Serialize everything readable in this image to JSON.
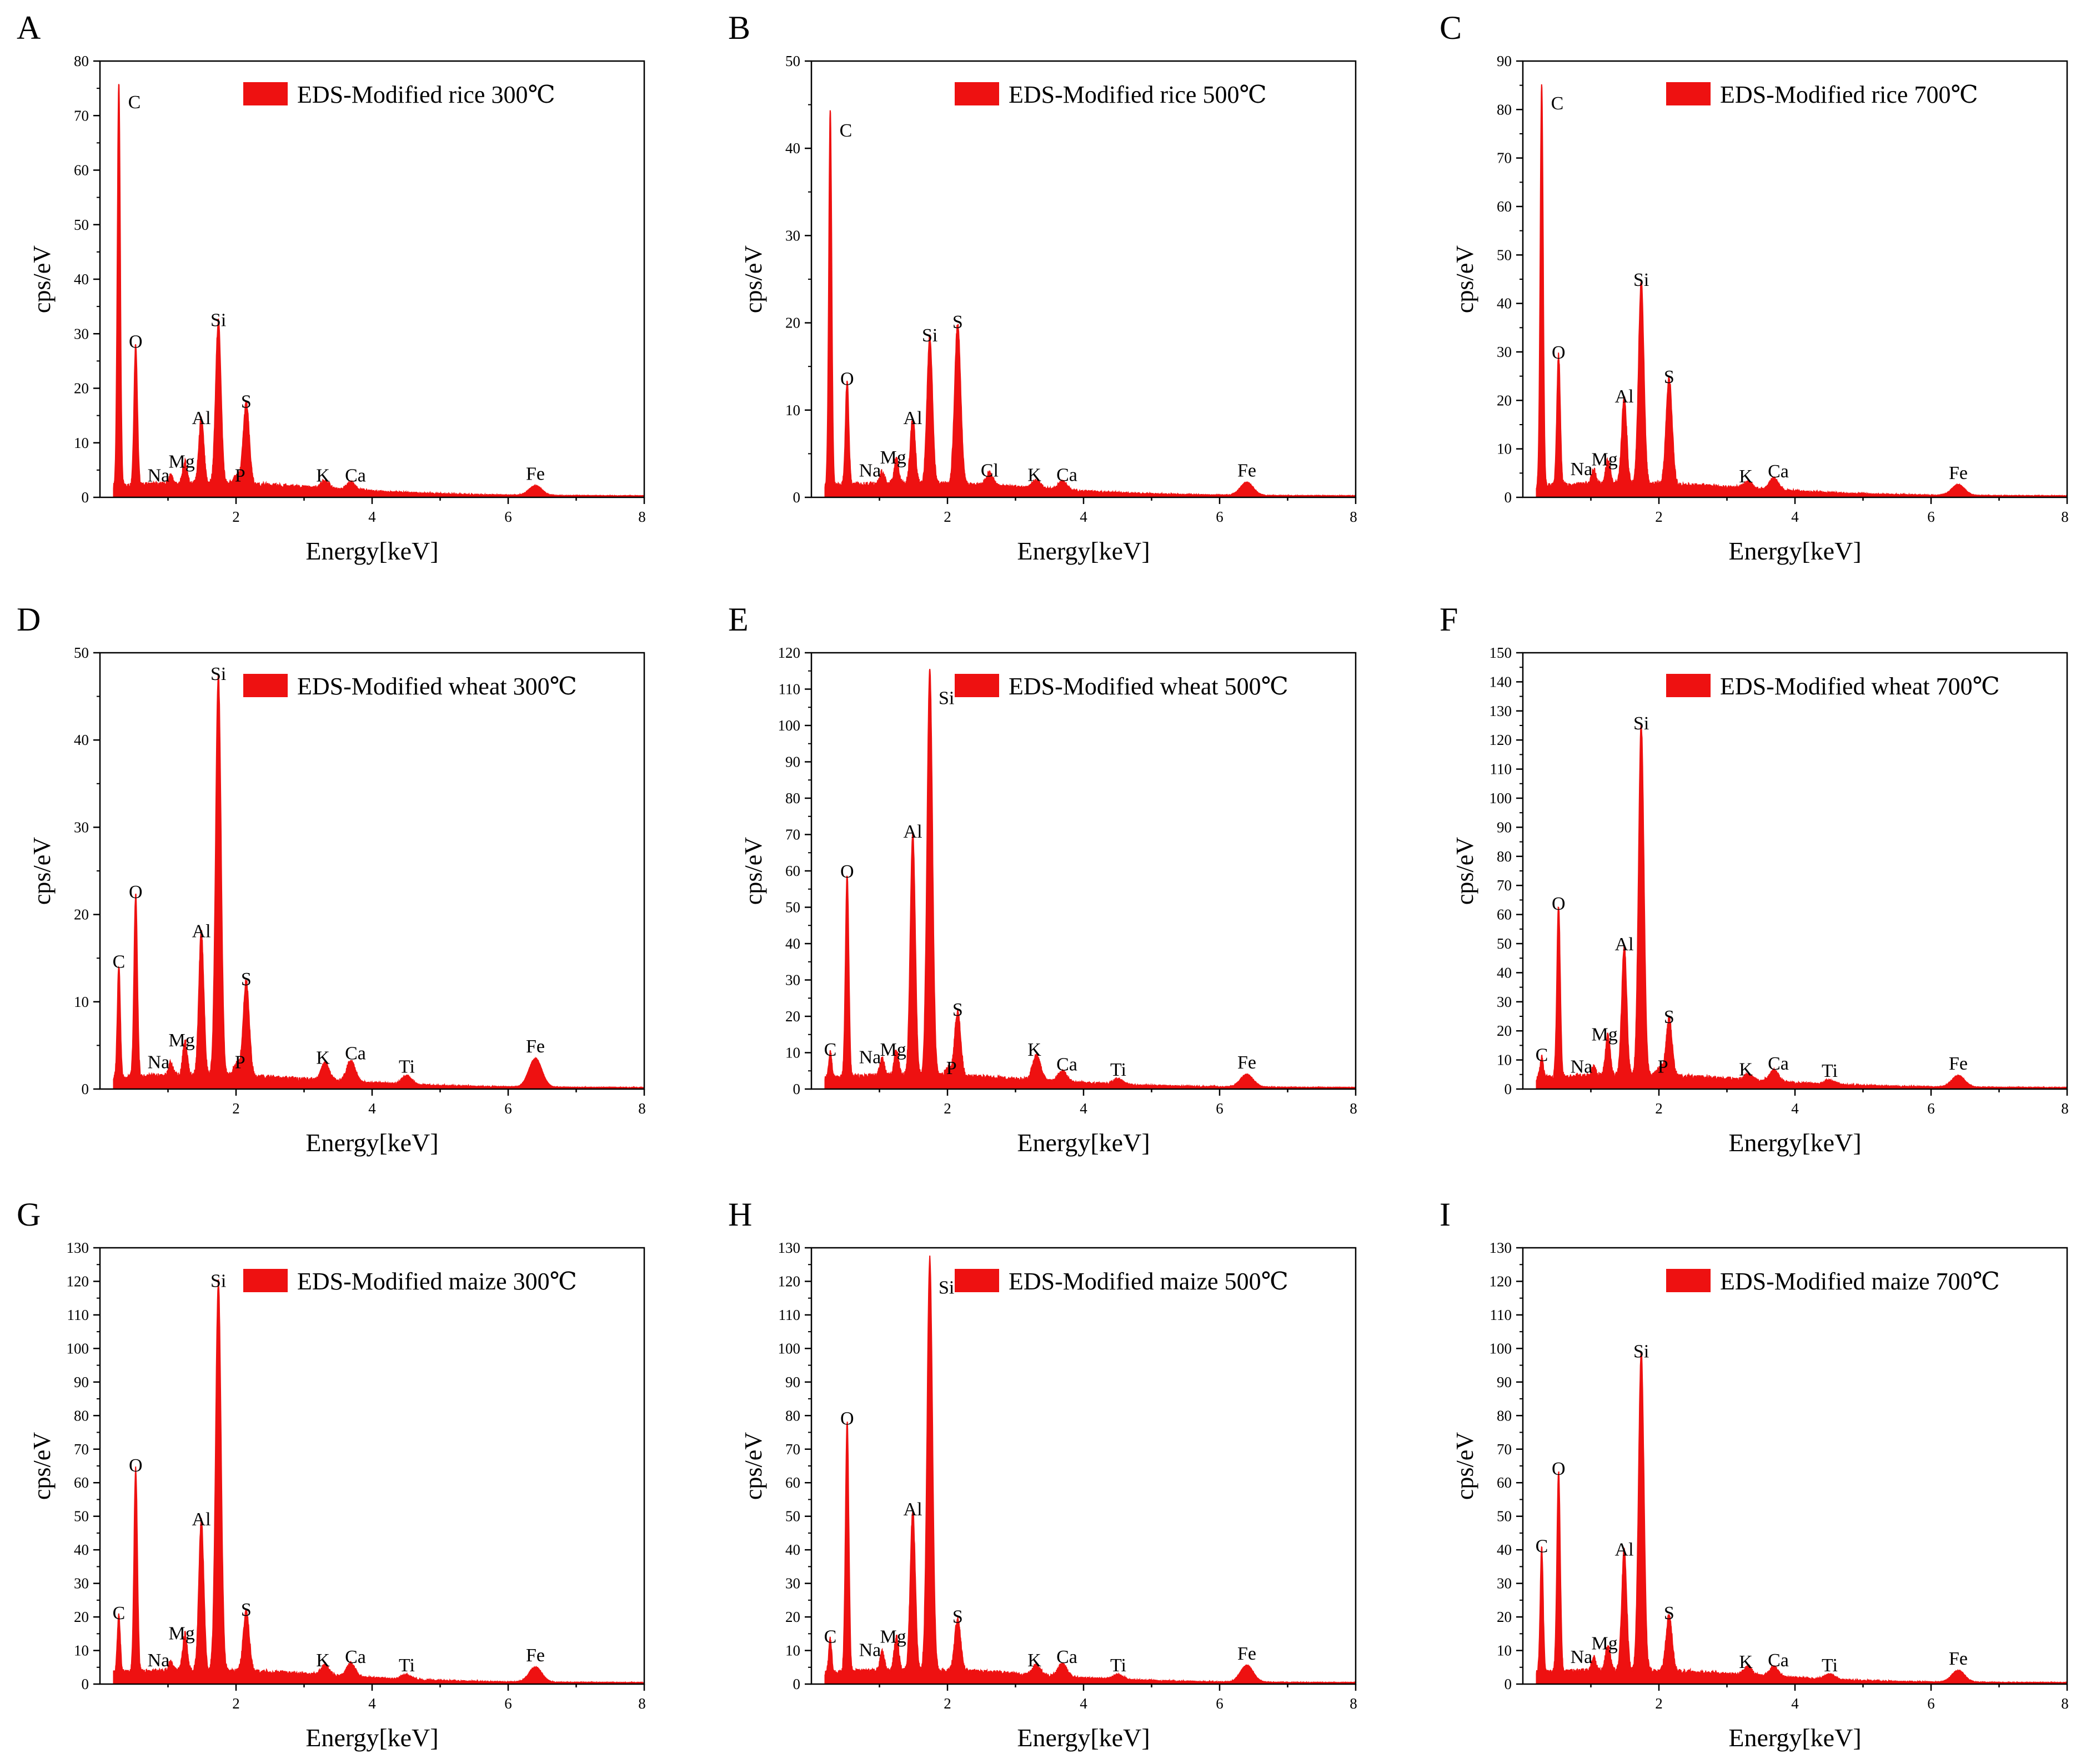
{
  "figure": {
    "x_label": "Energy[keV]",
    "y_label": "cps/eV",
    "series_color": "#ee1111",
    "x_ticks": [
      2,
      4,
      6,
      8
    ]
  },
  "chart_data": [
    {
      "panel": "A",
      "type": "area",
      "legend": "EDS-Modified rice 300℃",
      "xlabel": "Energy[keV]",
      "ylabel": "cps/eV",
      "xlim": [
        0,
        8
      ],
      "ylim": [
        0,
        80
      ],
      "yticks": [
        0,
        10,
        20,
        30,
        40,
        50,
        60,
        70,
        80
      ],
      "peaks": [
        {
          "label": "C",
          "x": 0.277,
          "y": 74
        },
        {
          "label": "O",
          "x": 0.525,
          "y": 26
        },
        {
          "label": "Na",
          "x": 1.04,
          "y": 1.5
        },
        {
          "label": "Mg",
          "x": 1.25,
          "y": 4
        },
        {
          "label": "Al",
          "x": 1.49,
          "y": 12
        },
        {
          "label": "Si",
          "x": 1.74,
          "y": 30
        },
        {
          "label": "P",
          "x": 2.01,
          "y": 1.5
        },
        {
          "label": "S",
          "x": 2.15,
          "y": 15
        },
        {
          "label": "K",
          "x": 3.31,
          "y": 1.5
        },
        {
          "label": "Ca",
          "x": 3.69,
          "y": 1.5
        },
        {
          "label": "Fe",
          "x": 6.4,
          "y": 1.8
        }
      ]
    },
    {
      "panel": "B",
      "type": "area",
      "legend": "EDS-Modified rice 500℃",
      "xlabel": "Energy[keV]",
      "ylabel": "cps/eV",
      "xlim": [
        0,
        8
      ],
      "ylim": [
        0,
        50
      ],
      "yticks": [
        0,
        10,
        20,
        30,
        40,
        50
      ],
      "peaks": [
        {
          "label": "C",
          "x": 0.277,
          "y": 43
        },
        {
          "label": "O",
          "x": 0.525,
          "y": 12
        },
        {
          "label": "Na",
          "x": 1.04,
          "y": 1.5
        },
        {
          "label": "Mg",
          "x": 1.25,
          "y": 3
        },
        {
          "label": "Al",
          "x": 1.49,
          "y": 7.5
        },
        {
          "label": "Si",
          "x": 1.74,
          "y": 17
        },
        {
          "label": "S",
          "x": 2.15,
          "y": 18.5
        },
        {
          "label": "Cl",
          "x": 2.62,
          "y": 1.5
        },
        {
          "label": "K",
          "x": 3.31,
          "y": 1
        },
        {
          "label": "Ca",
          "x": 3.69,
          "y": 1
        },
        {
          "label": "Fe",
          "x": 6.4,
          "y": 1.5
        }
      ]
    },
    {
      "panel": "C",
      "type": "area",
      "legend": "EDS-Modified rice 700℃",
      "xlabel": "Energy[keV]",
      "ylabel": "cps/eV",
      "xlim": [
        0,
        8
      ],
      "ylim": [
        0,
        90
      ],
      "yticks": [
        0,
        10,
        20,
        30,
        40,
        50,
        60,
        70,
        80,
        90
      ],
      "peaks": [
        {
          "label": "C",
          "x": 0.277,
          "y": 83
        },
        {
          "label": "O",
          "x": 0.525,
          "y": 27
        },
        {
          "label": "Na",
          "x": 1.04,
          "y": 3
        },
        {
          "label": "Mg",
          "x": 1.25,
          "y": 5
        },
        {
          "label": "Al",
          "x": 1.49,
          "y": 18
        },
        {
          "label": "Si",
          "x": 1.74,
          "y": 42
        },
        {
          "label": "S",
          "x": 2.15,
          "y": 22
        },
        {
          "label": "K",
          "x": 3.31,
          "y": 1.5
        },
        {
          "label": "Ca",
          "x": 3.69,
          "y": 2.5
        },
        {
          "label": "Fe",
          "x": 6.4,
          "y": 2.2
        }
      ]
    },
    {
      "panel": "D",
      "type": "area",
      "legend": "EDS-Modified wheat 300℃",
      "xlabel": "Energy[keV]",
      "ylabel": "cps/eV",
      "xlim": [
        0,
        8
      ],
      "ylim": [
        0,
        50
      ],
      "yticks": [
        0,
        10,
        20,
        30,
        40,
        50
      ],
      "peaks": [
        {
          "label": "C",
          "x": 0.277,
          "y": 13
        },
        {
          "label": "O",
          "x": 0.525,
          "y": 21
        },
        {
          "label": "Na",
          "x": 1.04,
          "y": 1.5
        },
        {
          "label": "Mg",
          "x": 1.25,
          "y": 4
        },
        {
          "label": "Al",
          "x": 1.49,
          "y": 16.5
        },
        {
          "label": "Si",
          "x": 1.74,
          "y": 46
        },
        {
          "label": "P",
          "x": 2.01,
          "y": 1.5
        },
        {
          "label": "S",
          "x": 2.15,
          "y": 11
        },
        {
          "label": "K",
          "x": 3.31,
          "y": 2
        },
        {
          "label": "Ca",
          "x": 3.69,
          "y": 2.5
        },
        {
          "label": "Ti",
          "x": 4.51,
          "y": 1
        },
        {
          "label": "Fe",
          "x": 6.4,
          "y": 3.3
        }
      ]
    },
    {
      "panel": "E",
      "type": "area",
      "legend": "EDS-Modified wheat 500℃",
      "xlabel": "Energy[keV]",
      "ylabel": "cps/eV",
      "xlim": [
        0,
        8
      ],
      "ylim": [
        0,
        120
      ],
      "yticks": [
        0,
        10,
        20,
        30,
        40,
        50,
        60,
        70,
        80,
        90,
        100,
        110,
        120
      ],
      "peaks": [
        {
          "label": "C",
          "x": 0.277,
          "y": 7
        },
        {
          "label": "O",
          "x": 0.525,
          "y": 56
        },
        {
          "label": "Na",
          "x": 1.04,
          "y": 5
        },
        {
          "label": "Mg",
          "x": 1.25,
          "y": 7
        },
        {
          "label": "Al",
          "x": 1.49,
          "y": 67
        },
        {
          "label": "Si",
          "x": 1.74,
          "y": 112
        },
        {
          "label": "P",
          "x": 2.01,
          "y": 2
        },
        {
          "label": "S",
          "x": 2.15,
          "y": 18
        },
        {
          "label": "K",
          "x": 3.31,
          "y": 7
        },
        {
          "label": "Ca",
          "x": 3.69,
          "y": 3
        },
        {
          "label": "Ti",
          "x": 4.51,
          "y": 1.5
        },
        {
          "label": "Fe",
          "x": 6.4,
          "y": 3.5
        }
      ]
    },
    {
      "panel": "F",
      "type": "area",
      "legend": "EDS-Modified wheat 700℃",
      "xlabel": "Energy[keV]",
      "ylabel": "cps/eV",
      "xlim": [
        0,
        8
      ],
      "ylim": [
        0,
        150
      ],
      "yticks": [
        0,
        10,
        20,
        30,
        40,
        50,
        60,
        70,
        80,
        90,
        100,
        110,
        120,
        130,
        140,
        150
      ],
      "peaks": [
        {
          "label": "C",
          "x": 0.277,
          "y": 7
        },
        {
          "label": "O",
          "x": 0.525,
          "y": 59
        },
        {
          "label": "Na",
          "x": 1.04,
          "y": 3
        },
        {
          "label": "Mg",
          "x": 1.25,
          "y": 14
        },
        {
          "label": "Al",
          "x": 1.49,
          "y": 45
        },
        {
          "label": "Si",
          "x": 1.74,
          "y": 121
        },
        {
          "label": "P",
          "x": 2.01,
          "y": 3
        },
        {
          "label": "S",
          "x": 2.15,
          "y": 20
        },
        {
          "label": "K",
          "x": 3.31,
          "y": 2
        },
        {
          "label": "Ca",
          "x": 3.69,
          "y": 4
        },
        {
          "label": "Ti",
          "x": 4.51,
          "y": 1.5
        },
        {
          "label": "Fe",
          "x": 6.4,
          "y": 4
        }
      ]
    },
    {
      "panel": "G",
      "type": "area",
      "legend": "EDS-Modified maize 300℃",
      "xlabel": "Energy[keV]",
      "ylabel": "cps/eV",
      "xlim": [
        0,
        8
      ],
      "ylim": [
        0,
        130
      ],
      "yticks": [
        0,
        10,
        20,
        30,
        40,
        50,
        60,
        70,
        80,
        90,
        100,
        110,
        120,
        130
      ],
      "peaks": [
        {
          "label": "C",
          "x": 0.277,
          "y": 17
        },
        {
          "label": "O",
          "x": 0.525,
          "y": 61
        },
        {
          "label": "Na",
          "x": 1.04,
          "y": 3
        },
        {
          "label": "Mg",
          "x": 1.25,
          "y": 11
        },
        {
          "label": "Al",
          "x": 1.49,
          "y": 45
        },
        {
          "label": "Si",
          "x": 1.74,
          "y": 116
        },
        {
          "label": "S",
          "x": 2.15,
          "y": 18
        },
        {
          "label": "K",
          "x": 3.31,
          "y": 3
        },
        {
          "label": "Ca",
          "x": 3.69,
          "y": 4
        },
        {
          "label": "Ti",
          "x": 4.51,
          "y": 1.5
        },
        {
          "label": "Fe",
          "x": 6.4,
          "y": 4.5
        }
      ]
    },
    {
      "panel": "H",
      "type": "area",
      "legend": "EDS-Modified maize 500℃",
      "xlabel": "Energy[keV]",
      "ylabel": "cps/eV",
      "xlim": [
        0,
        8
      ],
      "ylim": [
        0,
        130
      ],
      "yticks": [
        0,
        10,
        20,
        30,
        40,
        50,
        60,
        70,
        80,
        90,
        100,
        110,
        120,
        130
      ],
      "peaks": [
        {
          "label": "C",
          "x": 0.277,
          "y": 10
        },
        {
          "label": "O",
          "x": 0.525,
          "y": 75
        },
        {
          "label": "Na",
          "x": 1.04,
          "y": 6
        },
        {
          "label": "Mg",
          "x": 1.25,
          "y": 10
        },
        {
          "label": "Al",
          "x": 1.49,
          "y": 48
        },
        {
          "label": "Si",
          "x": 1.74,
          "y": 123
        },
        {
          "label": "S",
          "x": 2.15,
          "y": 16
        },
        {
          "label": "K",
          "x": 3.31,
          "y": 3
        },
        {
          "label": "Ca",
          "x": 3.69,
          "y": 4
        },
        {
          "label": "Ti",
          "x": 4.51,
          "y": 1.5
        },
        {
          "label": "Fe",
          "x": 6.4,
          "y": 5
        }
      ]
    },
    {
      "panel": "I",
      "type": "area",
      "legend": "EDS-Modified maize 700℃",
      "xlabel": "Energy[keV]",
      "ylabel": "cps/eV",
      "xlim": [
        0,
        8
      ],
      "ylim": [
        0,
        130
      ],
      "yticks": [
        0,
        10,
        20,
        30,
        40,
        50,
        60,
        70,
        80,
        90,
        100,
        110,
        120,
        130
      ],
      "peaks": [
        {
          "label": "C",
          "x": 0.277,
          "y": 37
        },
        {
          "label": "O",
          "x": 0.525,
          "y": 60
        },
        {
          "label": "Na",
          "x": 1.04,
          "y": 4
        },
        {
          "label": "Mg",
          "x": 1.25,
          "y": 8
        },
        {
          "label": "Al",
          "x": 1.49,
          "y": 36
        },
        {
          "label": "Si",
          "x": 1.74,
          "y": 95
        },
        {
          "label": "S",
          "x": 2.15,
          "y": 17
        },
        {
          "label": "K",
          "x": 3.31,
          "y": 2.5
        },
        {
          "label": "Ca",
          "x": 3.69,
          "y": 3
        },
        {
          "label": "Ti",
          "x": 4.51,
          "y": 1.5
        },
        {
          "label": "Fe",
          "x": 6.4,
          "y": 3.5
        }
      ]
    }
  ]
}
